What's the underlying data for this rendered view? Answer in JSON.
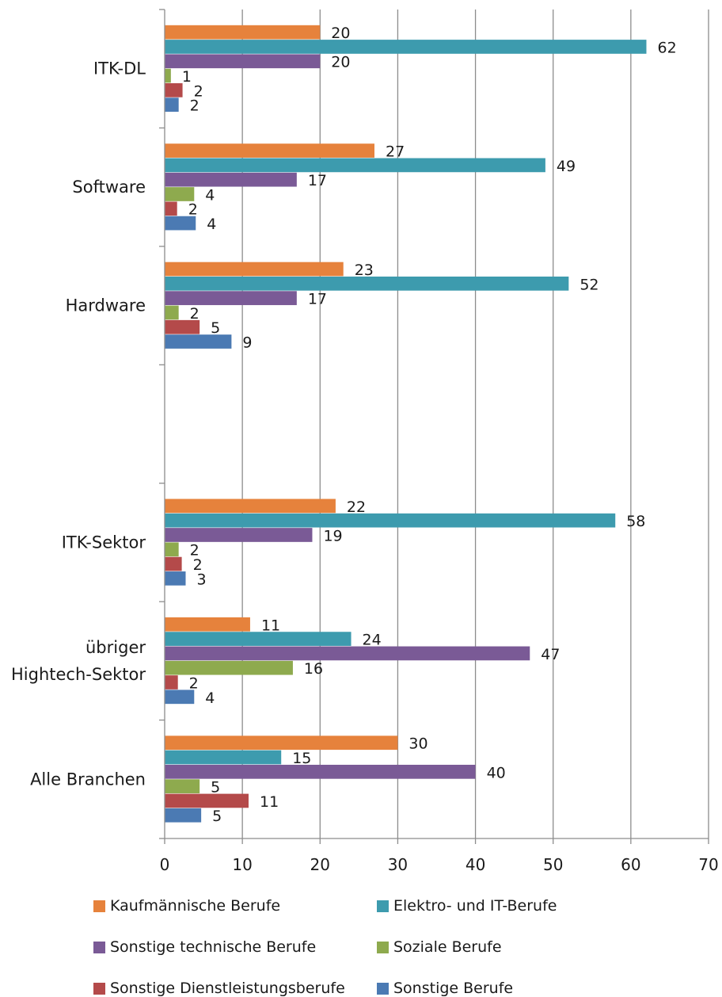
{
  "chart_data": {
    "type": "bar",
    "orientation": "horizontal",
    "categories": [
      "Alle Branchen",
      "übriger Hightech-Sektor",
      "ITK-Sektor",
      "",
      "Hardware",
      "Software",
      "ITK-DL"
    ],
    "category_display": [
      [
        "Alle Branchen"
      ],
      [
        "übriger",
        "Hightech-Sektor"
      ],
      [
        "ITK-Sektor"
      ],
      [],
      [
        "Hardware"
      ],
      [
        "Software"
      ],
      [
        "ITK-DL"
      ]
    ],
    "series": [
      {
        "name": "Kaufmännische Berufe",
        "color": "#E6823C",
        "values": [
          30,
          11,
          22,
          null,
          23,
          27,
          20
        ],
        "labels": [
          "30",
          "11",
          "22",
          "",
          "23",
          "27",
          "20"
        ]
      },
      {
        "name": "Elektro- und IT-Berufe",
        "color": "#3D9BAE",
        "values": [
          15,
          24,
          58,
          null,
          52,
          49,
          62
        ],
        "labels": [
          "15",
          "24",
          "58",
          "",
          "52",
          "49",
          "62"
        ]
      },
      {
        "name": "Sonstige technische Berufe",
        "color": "#7A5A96",
        "values": [
          40,
          47,
          19,
          null,
          17,
          17,
          20
        ],
        "labels": [
          "40",
          "47",
          "19",
          "",
          "17",
          "17",
          "20"
        ]
      },
      {
        "name": "Soziale Berufe",
        "color": "#8EAA4E",
        "values": [
          4.5,
          16.5,
          1.8,
          null,
          1.8,
          3.8,
          0.8
        ],
        "labels": [
          "5",
          "16",
          "2",
          "",
          "2",
          "4",
          "1"
        ]
      },
      {
        "name": "Sonstige Dienstleistungsberufe",
        "color": "#B44A4A",
        "values": [
          10.8,
          1.7,
          2.2,
          null,
          4.5,
          1.6,
          2.3
        ],
        "labels": [
          "11",
          "2",
          "2",
          "",
          "5",
          "2",
          "2"
        ]
      },
      {
        "name": "Sonstige Berufe",
        "color": "#4B7AB3",
        "values": [
          4.7,
          3.8,
          2.7,
          null,
          8.6,
          4.0,
          1.8
        ],
        "labels": [
          "5",
          "4",
          "3",
          "",
          "9",
          "4",
          "2"
        ]
      }
    ],
    "x_ticks": [
      "0",
      "10",
      "20",
      "30",
      "40",
      "50",
      "60",
      "70"
    ],
    "xlim": [
      0,
      70
    ],
    "grid": true,
    "legend_position": "bottom"
  }
}
